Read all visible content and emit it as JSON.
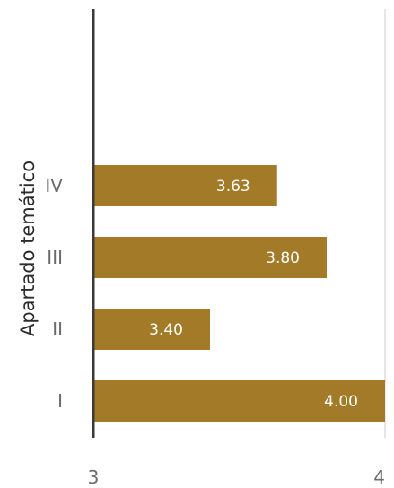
{
  "chart_data": {
    "type": "bar",
    "orientation": "horizontal",
    "ylabel": "Apartado temático",
    "xlabel": "",
    "categories": [
      "I",
      "II",
      "III",
      "IV"
    ],
    "values": [
      4.0,
      3.4,
      3.8,
      3.63
    ],
    "value_labels": [
      "4.00",
      "3.40",
      "3.80",
      "3.63"
    ],
    "xlim": [
      3,
      4
    ],
    "x_ticks": [
      "3",
      "4"
    ],
    "bar_color": "#a37a27",
    "grid": false,
    "legend": "none"
  }
}
